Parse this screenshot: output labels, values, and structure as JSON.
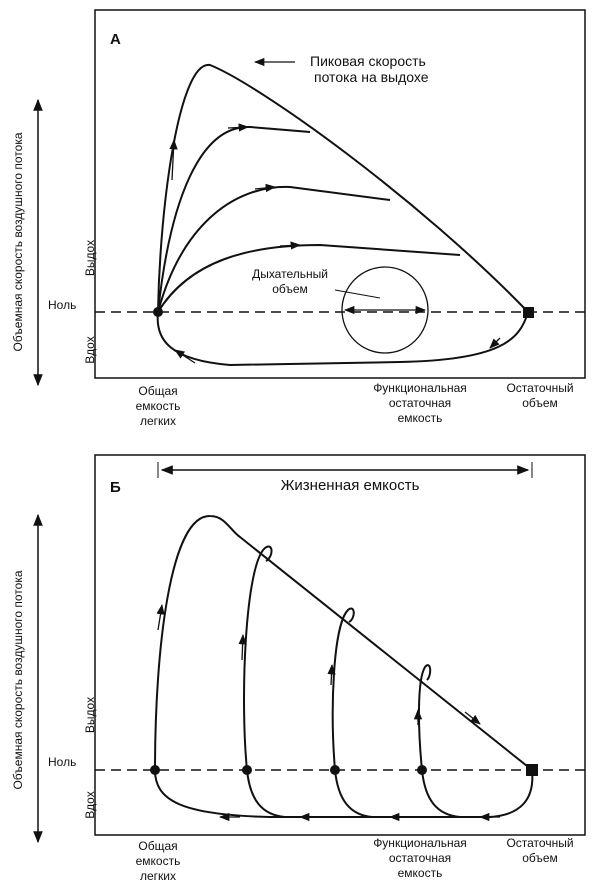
{
  "panels": [
    {
      "label": "А",
      "annotation": [
        "Пиковая скорость",
        "потока на выдохе"
      ],
      "tidal_label": [
        "Дыхательный",
        "объем"
      ],
      "y_axis_title": "Объемная скорость воздушного потока",
      "y_labels": {
        "exhale": "Выдох",
        "zero": "Ноль",
        "inhale": "Вдох"
      },
      "x_labels": [
        [
          "Общая",
          "емкость",
          "легких"
        ],
        [
          "Функциональная",
          "остаточная",
          "емкость"
        ],
        [
          "Остаточный",
          "объем"
        ]
      ]
    },
    {
      "label": "Б",
      "annotation": [
        "Жизненная емкость"
      ],
      "y_axis_title": "Объемная скорость воздушного потока",
      "y_labels": {
        "exhale": "Выдох",
        "zero": "Ноль",
        "inhale": "Вдох"
      },
      "x_labels": [
        [
          "Общая",
          "емкость",
          "легких"
        ],
        [
          "Функциональная",
          "остаточная",
          "емкость"
        ],
        [
          "Остаточный",
          "объем"
        ]
      ]
    }
  ]
}
